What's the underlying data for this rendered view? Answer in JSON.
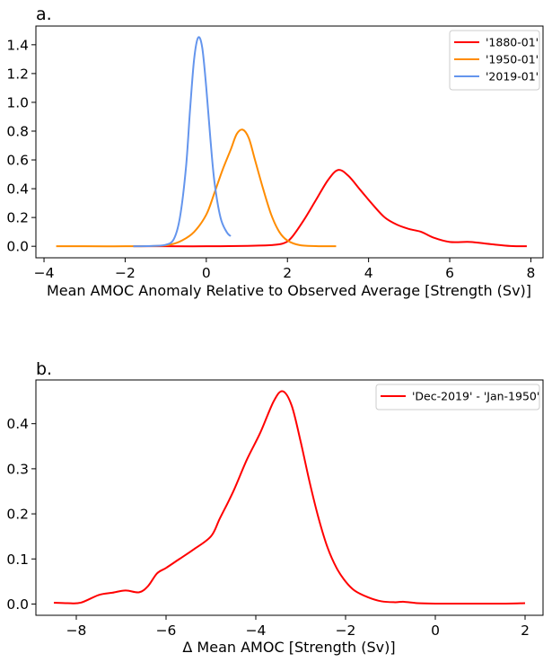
{
  "chart_data": [
    {
      "type": "line",
      "panel_label": "a.",
      "title": "",
      "xlabel": "Mean AMOC Anomaly Relative to Observed Average [Strength (Sv)]",
      "ylabel": "",
      "xlim": [
        -4.2,
        8.3
      ],
      "ylim": [
        -0.08,
        1.53
      ],
      "xticks": [
        -4,
        -2,
        0,
        2,
        4,
        6,
        8
      ],
      "xtick_labels": [
        "−4",
        "−2",
        "0",
        "2",
        "4",
        "6",
        "8"
      ],
      "yticks": [
        0.0,
        0.2,
        0.4,
        0.6,
        0.8,
        1.0,
        1.2,
        1.4
      ],
      "ytick_labels": [
        "0.0",
        "0.2",
        "0.4",
        "0.6",
        "0.8",
        "1.0",
        "1.2",
        "1.4"
      ],
      "legend_position": "top-right",
      "series": [
        {
          "name": "'1880-01'",
          "color": "#ff0000",
          "x": [
            -1.8,
            -1.0,
            0.0,
            1.0,
            1.6,
            1.9,
            2.1,
            2.4,
            2.7,
            3.0,
            3.25,
            3.5,
            3.8,
            4.1,
            4.4,
            4.7,
            5.0,
            5.3,
            5.6,
            6.0,
            6.5,
            7.0,
            7.5,
            7.9
          ],
          "y": [
            0.0,
            0.0,
            0.0,
            0.003,
            0.008,
            0.02,
            0.06,
            0.18,
            0.32,
            0.46,
            0.53,
            0.49,
            0.39,
            0.29,
            0.2,
            0.15,
            0.12,
            0.1,
            0.06,
            0.03,
            0.03,
            0.015,
            0.002,
            0.0
          ]
        },
        {
          "name": "'1950-01'",
          "color": "#ff8c00",
          "x": [
            -3.7,
            -3.0,
            -2.0,
            -1.2,
            -0.9,
            -0.6,
            -0.3,
            0.0,
            0.2,
            0.4,
            0.6,
            0.75,
            0.9,
            1.05,
            1.2,
            1.4,
            1.6,
            1.8,
            2.0,
            2.3,
            2.7,
            3.2
          ],
          "y": [
            0.0,
            0.0,
            0.0,
            0.003,
            0.01,
            0.04,
            0.1,
            0.22,
            0.37,
            0.53,
            0.67,
            0.78,
            0.81,
            0.75,
            0.6,
            0.4,
            0.22,
            0.1,
            0.04,
            0.008,
            0.001,
            0.0
          ]
        },
        {
          "name": "'2019-01'",
          "color": "#6495ed",
          "x": [
            -1.8,
            -1.3,
            -1.0,
            -0.8,
            -0.65,
            -0.5,
            -0.4,
            -0.3,
            -0.2,
            -0.1,
            0.0,
            0.1,
            0.2,
            0.35,
            0.5,
            0.6
          ],
          "y": [
            0.0,
            0.003,
            0.01,
            0.05,
            0.2,
            0.55,
            0.95,
            1.3,
            1.45,
            1.38,
            1.1,
            0.75,
            0.45,
            0.2,
            0.1,
            0.07
          ]
        }
      ]
    },
    {
      "type": "line",
      "panel_label": "b.",
      "title": "",
      "xlabel": "Δ Mean AMOC [Strength (Sv)]",
      "ylabel": "",
      "xlim": [
        -8.9,
        2.4
      ],
      "ylim": [
        -0.025,
        0.497
      ],
      "xticks": [
        -8,
        -6,
        -4,
        -2,
        0,
        2
      ],
      "xtick_labels": [
        "−8",
        "−6",
        "−4",
        "−2",
        "0",
        "2"
      ],
      "yticks": [
        0.0,
        0.1,
        0.2,
        0.3,
        0.4
      ],
      "ytick_labels": [
        "0.0",
        "0.1",
        "0.2",
        "0.3",
        "0.4"
      ],
      "legend_position": "top-right",
      "series": [
        {
          "name": "'Dec-2019' - 'Jan-1950'",
          "color": "#ff0000",
          "x": [
            -8.5,
            -8.2,
            -7.9,
            -7.5,
            -7.2,
            -6.9,
            -6.6,
            -6.4,
            -6.2,
            -6.0,
            -5.7,
            -5.4,
            -5.0,
            -4.8,
            -4.5,
            -4.2,
            -3.9,
            -3.6,
            -3.4,
            -3.2,
            -3.0,
            -2.8,
            -2.6,
            -2.4,
            -2.2,
            -2.0,
            -1.8,
            -1.5,
            -1.2,
            -0.9,
            -0.7,
            -0.4,
            0.0,
            0.5,
            1.0,
            1.5,
            2.0
          ],
          "y": [
            0.003,
            0.002,
            0.003,
            0.02,
            0.025,
            0.03,
            0.026,
            0.04,
            0.068,
            0.08,
            0.1,
            0.12,
            0.15,
            0.19,
            0.25,
            0.32,
            0.38,
            0.45,
            0.472,
            0.44,
            0.36,
            0.27,
            0.19,
            0.125,
            0.08,
            0.05,
            0.03,
            0.015,
            0.006,
            0.004,
            0.005,
            0.002,
            0.001,
            0.001,
            0.001,
            0.001,
            0.002
          ]
        }
      ]
    }
  ]
}
